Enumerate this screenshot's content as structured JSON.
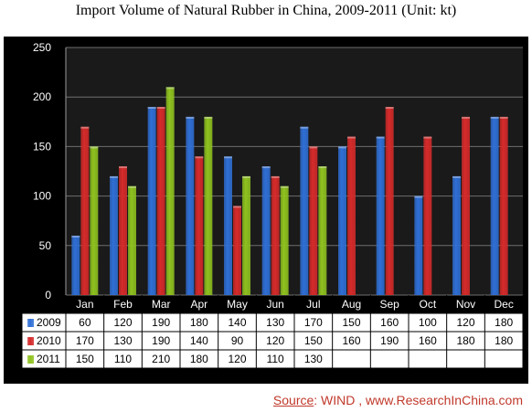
{
  "title": "Import Volume of Natural Rubber in China, 2009-2011 (Unit: kt)",
  "source": {
    "label": "Source",
    "text": ": WIND , www.ResearchInChina.com"
  },
  "chart_data": {
    "type": "bar",
    "title": "Import Volume of Natural Rubber in China, 2009-2011 (Unit: kt)",
    "categories": [
      "Jan",
      "Feb",
      "Mar",
      "Apr",
      "May",
      "Jun",
      "Jul",
      "Aug",
      "Sep",
      "Oct",
      "Nov",
      "Dec"
    ],
    "series": [
      {
        "name": "2009",
        "color": "#2f6fd6",
        "values": [
          60,
          120,
          190,
          180,
          140,
          130,
          170,
          150,
          160,
          100,
          120,
          180
        ]
      },
      {
        "name": "2010",
        "color": "#d62a2a",
        "values": [
          170,
          130,
          190,
          140,
          90,
          120,
          150,
          160,
          190,
          160,
          180,
          180
        ]
      },
      {
        "name": "2011",
        "color": "#8fc21f",
        "values": [
          150,
          110,
          210,
          180,
          120,
          110,
          130,
          null,
          null,
          null,
          null,
          null
        ]
      }
    ],
    "ylim": [
      0,
      250
    ],
    "yticks": [
      0,
      50,
      100,
      150,
      200,
      250
    ],
    "grid": true,
    "legend": "data-table-left",
    "background": "#000000"
  }
}
